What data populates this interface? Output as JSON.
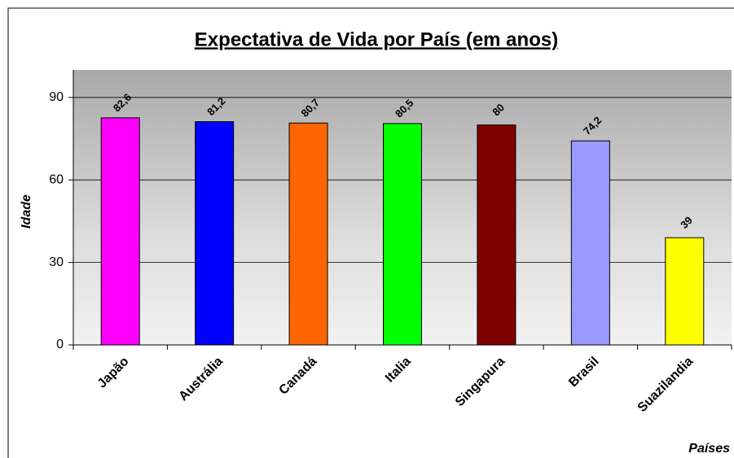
{
  "chart_data": {
    "type": "bar",
    "title": "Expectativa de Vida por País (em anos)",
    "x_label": "Países",
    "y_label": "Idade",
    "categories": [
      "Japão",
      "Austrália",
      "Canadá",
      "Italia",
      "Singapura",
      "Brasil",
      "Suazilandia"
    ],
    "values": [
      82.6,
      81.2,
      80.7,
      80.5,
      80,
      74.2,
      39
    ],
    "value_labels": [
      "82,6",
      "81,2",
      "80,7",
      "80,5",
      "80",
      "74,2",
      "39"
    ],
    "colors": [
      "#ff00ff",
      "#0000ff",
      "#ff6600",
      "#00ff00",
      "#800000",
      "#9999ff",
      "#ffff00"
    ],
    "ylim": [
      0,
      100
    ],
    "yticks": [
      0,
      30,
      60,
      90
    ],
    "grid": true
  }
}
